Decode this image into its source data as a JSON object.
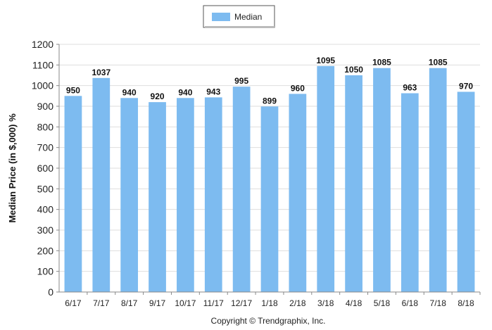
{
  "chart_data": {
    "type": "bar",
    "categories": [
      "6/17",
      "7/17",
      "8/17",
      "9/17",
      "10/17",
      "11/17",
      "12/17",
      "1/18",
      "2/18",
      "3/18",
      "4/18",
      "5/18",
      "6/18",
      "7/18",
      "8/18"
    ],
    "series": [
      {
        "name": "Median",
        "values": [
          950,
          1037,
          940,
          920,
          940,
          943,
          995,
          899,
          960,
          1095,
          1050,
          1085,
          963,
          1085,
          970
        ]
      }
    ],
    "title": "",
    "xlabel": "",
    "ylabel": "Median Price (in $,000) %",
    "ylim": [
      0,
      1200
    ],
    "yticks": [
      0,
      100,
      200,
      300,
      400,
      500,
      600,
      700,
      800,
      900,
      1000,
      1100,
      1200
    ],
    "grid": true,
    "legend_position": "top-center",
    "bar_color": "#7dbbf0"
  },
  "footer": {
    "copyright": "Copyright © Trendgraphix, Inc."
  }
}
